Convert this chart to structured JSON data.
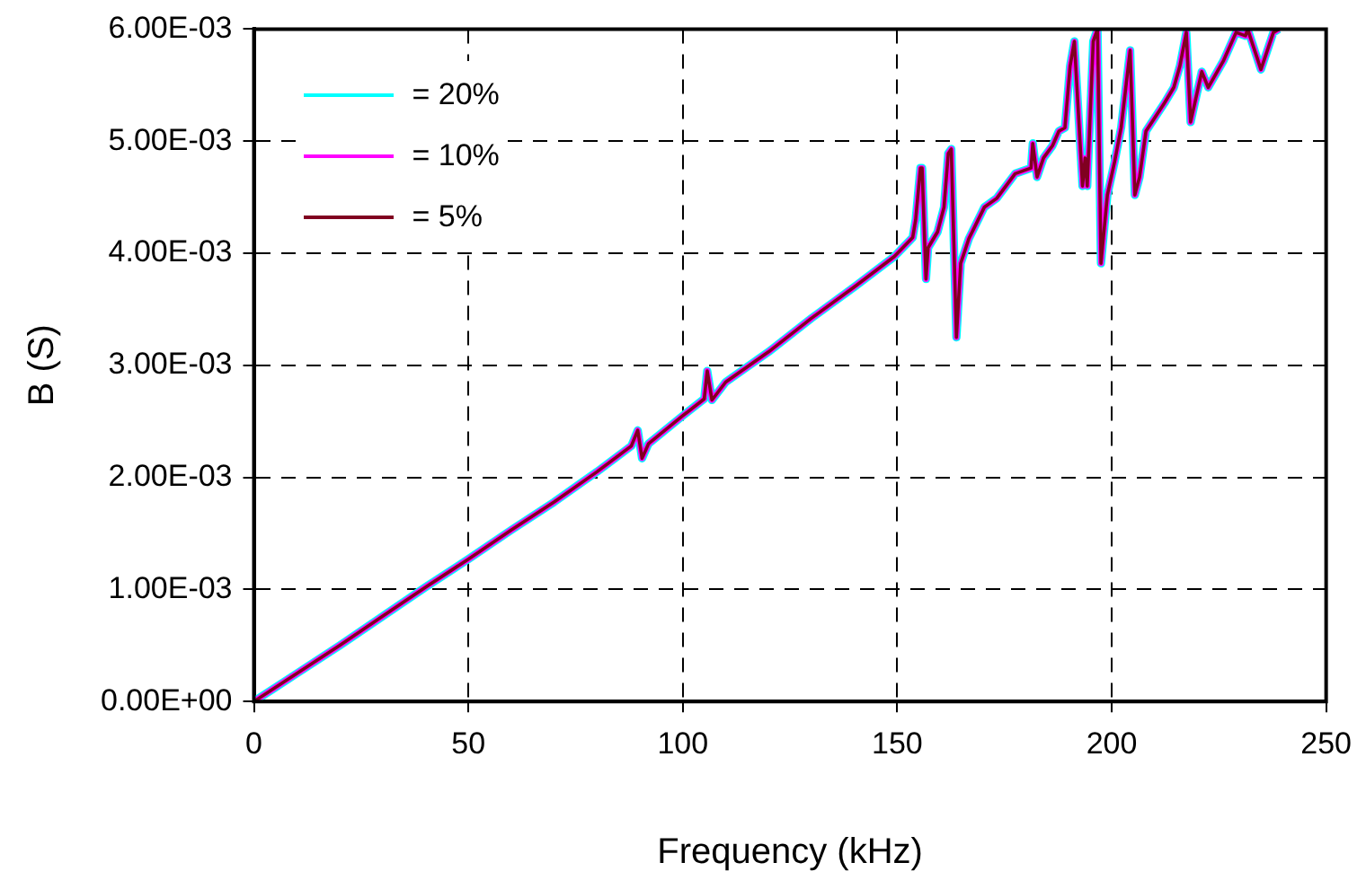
{
  "chart_data": {
    "type": "line",
    "xlabel": "Frequency (kHz)",
    "ylabel": "B (S)",
    "xlim": [
      0,
      250
    ],
    "xticks": [
      0,
      50,
      100,
      150,
      200,
      250
    ],
    "ylim": [
      0,
      0.006
    ],
    "yticks": [
      {
        "value": 0,
        "label": "0.00E+00"
      },
      {
        "value": 0.001,
        "label": "1.00E-03"
      },
      {
        "value": 0.002,
        "label": "2.00E-03"
      },
      {
        "value": 0.003,
        "label": "3.00E-03"
      },
      {
        "value": 0.004,
        "label": "4.00E-03"
      },
      {
        "value": 0.005,
        "label": "5.00E-03"
      },
      {
        "value": 0.006,
        "label": "6.00E-03"
      }
    ],
    "grid": true,
    "legend": "top left",
    "marker": "none",
    "line_style": "solid",
    "x": [
      0,
      10,
      20,
      30,
      40,
      50,
      60,
      70,
      80,
      88,
      89.5,
      90.5,
      92,
      100,
      105,
      105.7,
      106.8,
      110,
      120,
      130,
      140,
      149.3,
      153.6,
      154.3,
      155.4,
      155.8,
      156.7,
      157.2,
      159.4,
      160.9,
      161.9,
      162.6,
      163.8,
      164.8,
      166.7,
      170.3,
      173.2,
      177.5,
      181.2,
      181.6,
      182.6,
      184.1,
      186.2,
      187.7,
      189.1,
      190.3,
      191.3,
      193.2,
      193.8,
      194.3,
      195.7,
      196.7,
      197.5,
      199.0,
      200.7,
      202.2,
      204.3,
      205.4,
      206.5,
      208.0,
      212.3,
      214.5,
      215.9,
      217.4,
      218.4,
      221.0,
      222.5,
      226.1,
      229.0,
      231.2,
      231.7,
      234.8,
      237.7,
      239
    ],
    "series": [
      {
        "name": "= 20%",
        "color": "#00ffff",
        "values": [
          0,
          0.00025,
          0.0005,
          0.00076,
          0.00102,
          0.00127,
          0.00153,
          0.00178,
          0.00205,
          0.00228,
          0.00242,
          0.00217,
          0.0023,
          0.00255,
          0.0027,
          0.00295,
          0.00269,
          0.00285,
          0.00312,
          0.00342,
          0.0037,
          0.00397,
          0.00414,
          0.0043,
          0.00476,
          0.00476,
          0.00377,
          0.00405,
          0.00419,
          0.00441,
          0.00489,
          0.00493,
          0.00325,
          0.00391,
          0.00413,
          0.00441,
          0.00449,
          0.00471,
          0.00476,
          0.00498,
          0.00468,
          0.00485,
          0.00496,
          0.00509,
          0.00512,
          0.00567,
          0.00589,
          0.0046,
          0.00485,
          0.0046,
          0.00589,
          0.006,
          0.00391,
          0.00452,
          0.00482,
          0.00512,
          0.00581,
          0.00452,
          0.00468,
          0.00509,
          0.00534,
          0.00548,
          0.00567,
          0.00597,
          0.00517,
          0.00562,
          0.00548,
          0.00572,
          0.00597,
          0.00594,
          0.006,
          0.00564,
          0.00597,
          0.006
        ]
      },
      {
        "name": "= 10%",
        "color": "#ff00ff",
        "values": [
          0,
          0.00025,
          0.0005,
          0.00076,
          0.00102,
          0.00127,
          0.00153,
          0.00178,
          0.00205,
          0.00228,
          0.00242,
          0.00217,
          0.0023,
          0.00255,
          0.0027,
          0.00295,
          0.00269,
          0.00285,
          0.00312,
          0.00342,
          0.0037,
          0.00397,
          0.00414,
          0.0043,
          0.00476,
          0.00476,
          0.00377,
          0.00405,
          0.00419,
          0.00441,
          0.00489,
          0.00493,
          0.00325,
          0.00391,
          0.00413,
          0.00441,
          0.00449,
          0.00471,
          0.00476,
          0.00498,
          0.00468,
          0.00485,
          0.00496,
          0.00509,
          0.00512,
          0.00567,
          0.00589,
          0.0046,
          0.00485,
          0.0046,
          0.00589,
          0.006,
          0.00391,
          0.00452,
          0.00482,
          0.00512,
          0.00581,
          0.00452,
          0.00468,
          0.00509,
          0.00534,
          0.00548,
          0.00567,
          0.00597,
          0.00517,
          0.00562,
          0.00548,
          0.00572,
          0.00597,
          0.00594,
          0.006,
          0.00564,
          0.00597,
          0.006
        ]
      },
      {
        "name": "= 5%",
        "color": "#800020",
        "values": [
          0,
          0.00025,
          0.0005,
          0.00076,
          0.00102,
          0.00127,
          0.00153,
          0.00178,
          0.00205,
          0.00228,
          0.00242,
          0.00217,
          0.0023,
          0.00255,
          0.0027,
          0.00295,
          0.00269,
          0.00285,
          0.00312,
          0.00342,
          0.0037,
          0.00397,
          0.00414,
          0.0043,
          0.00476,
          0.00476,
          0.00377,
          0.00405,
          0.00419,
          0.00441,
          0.00489,
          0.00493,
          0.00325,
          0.00391,
          0.00413,
          0.00441,
          0.00449,
          0.00471,
          0.00476,
          0.00498,
          0.00468,
          0.00485,
          0.00496,
          0.00509,
          0.00512,
          0.00567,
          0.00589,
          0.0046,
          0.00485,
          0.0046,
          0.00589,
          0.006,
          0.00391,
          0.00452,
          0.00482,
          0.00512,
          0.00581,
          0.00452,
          0.00468,
          0.00509,
          0.00534,
          0.00548,
          0.00567,
          0.00597,
          0.00517,
          0.00562,
          0.00548,
          0.00572,
          0.00597,
          0.00594,
          0.006,
          0.00564,
          0.00597,
          0.006
        ]
      }
    ]
  }
}
